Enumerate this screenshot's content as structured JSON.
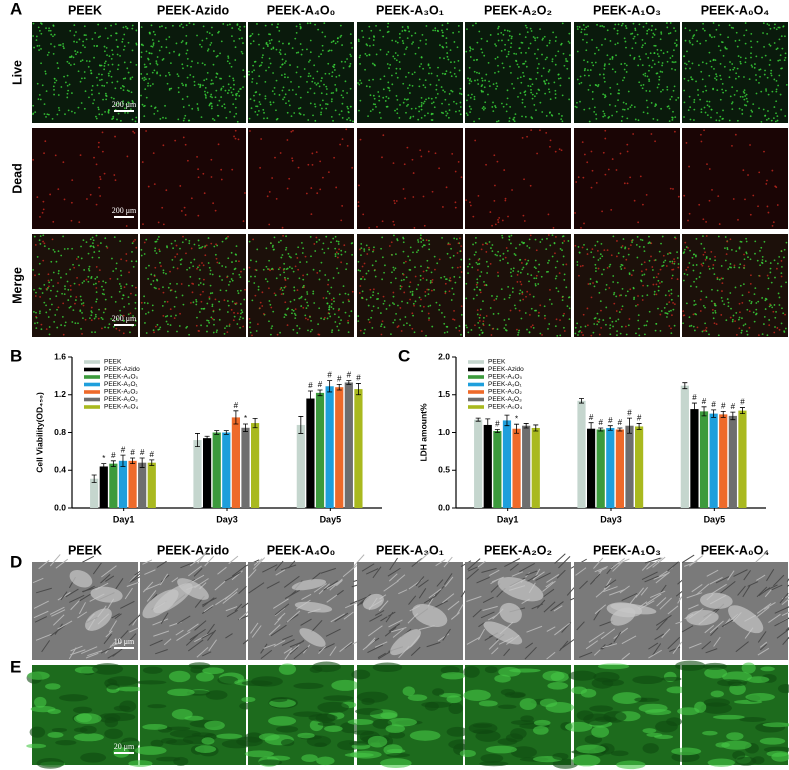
{
  "panel_letters": [
    "A",
    "B",
    "C",
    "D",
    "E"
  ],
  "column_labels": [
    "PEEK",
    "PEEK-Azido",
    "PEEK-A₄O₀",
    "PEEK-A₃O₁",
    "PEEK-A₂O₂",
    "PEEK-A₁O₃",
    "PEEK-A₀O₄"
  ],
  "row_labels": [
    "Live",
    "Dead",
    "Merge"
  ],
  "scale_bars": [
    "200 μm",
    "200 μm",
    "200 μm",
    "10 μm",
    "20 μm"
  ],
  "chart_data": [
    {
      "type": "bar",
      "y_label": "Cell Viability(OD₄₅₀)",
      "categories": [
        "Day1",
        "Day3",
        "Day5"
      ],
      "ylim": [
        0,
        1.6
      ],
      "yticks": [
        {
          "value": 0,
          "label": "0.0"
        },
        0.4,
        0.8,
        1.2,
        1.6
      ],
      "series": [
        {
          "name": "PEEK",
          "color": "#c5d6ce",
          "values": [
            0.31,
            0.72,
            0.88
          ],
          "errors": [
            0.04,
            0.07,
            0.09
          ],
          "markers": [
            null,
            null,
            null
          ]
        },
        {
          "name": "PEEK-Azido",
          "color": "#000000",
          "values": [
            0.44,
            0.74,
            1.16
          ],
          "errors": [
            0.03,
            0.02,
            0.08
          ],
          "markers": [
            "*",
            null,
            "#"
          ]
        },
        {
          "name": "PEEK-A₄O₀",
          "color": "#3c9a3c",
          "values": [
            0.47,
            0.8,
            1.22
          ],
          "errors": [
            0.03,
            0.02,
            0.03
          ],
          "markers": [
            "#",
            null,
            "#"
          ]
        },
        {
          "name": "PEEK-A₃O₁",
          "color": "#1e9fdc",
          "values": [
            0.5,
            0.8,
            1.29
          ],
          "errors": [
            0.06,
            0.02,
            0.06
          ],
          "markers": [
            "#",
            null,
            "#"
          ]
        },
        {
          "name": "PEEK-A₂O₂",
          "color": "#ee6a2a",
          "values": [
            0.5,
            0.96,
            1.28
          ],
          "errors": [
            0.03,
            0.07,
            0.03
          ],
          "markers": [
            "#",
            "#",
            "#"
          ]
        },
        {
          "name": "PEEK-A₁O₃",
          "color": "#6e6e6e",
          "values": [
            0.48,
            0.85,
            1.33
          ],
          "errors": [
            0.05,
            0.04,
            0.02
          ],
          "markers": [
            "#",
            "*",
            "#"
          ]
        },
        {
          "name": "PEEK-A₀O₄",
          "color": "#a9b91f",
          "values": [
            0.48,
            0.9,
            1.26
          ],
          "errors": [
            0.03,
            0.05,
            0.06
          ],
          "markers": [
            "#",
            null,
            "#"
          ]
        }
      ]
    },
    {
      "type": "bar",
      "y_label": "LDH amount%",
      "categories": [
        "Day1",
        "Day3",
        "Day5"
      ],
      "ylim": [
        0,
        2.0
      ],
      "yticks": [
        {
          "value": 0,
          "label": "0.0"
        },
        0.5,
        {
          "value": 1,
          "label": "1.0"
        },
        1.5,
        {
          "value": 2,
          "label": "2.0"
        }
      ],
      "series": [
        {
          "name": "PEEK",
          "color": "#c5d6ce",
          "values": [
            1.17,
            1.42,
            1.62
          ],
          "errors": [
            0.02,
            0.03,
            0.04
          ],
          "markers": [
            null,
            null,
            null
          ]
        },
        {
          "name": "PEEK-Azido",
          "color": "#000000",
          "values": [
            1.1,
            1.05,
            1.31
          ],
          "errors": [
            0.08,
            0.08,
            0.08
          ],
          "markers": [
            null,
            "#",
            "#"
          ]
        },
        {
          "name": "PEEK-A₄O₀",
          "color": "#3c9a3c",
          "values": [
            1.02,
            1.04,
            1.28
          ],
          "errors": [
            0.02,
            0.02,
            0.06
          ],
          "markers": [
            "#",
            "#",
            "#"
          ]
        },
        {
          "name": "PEEK-A₃O₁",
          "color": "#1e9fdc",
          "values": [
            1.16,
            1.06,
            1.25
          ],
          "errors": [
            0.07,
            0.03,
            0.05
          ],
          "markers": [
            null,
            "#",
            "#"
          ]
        },
        {
          "name": "PEEK-A₂O₂",
          "color": "#ee6a2a",
          "values": [
            1.05,
            1.04,
            1.24
          ],
          "errors": [
            0.06,
            0.02,
            0.04
          ],
          "markers": [
            "*",
            "#",
            "#"
          ]
        },
        {
          "name": "PEEK-A₁O₃",
          "color": "#6e6e6e",
          "values": [
            1.09,
            1.09,
            1.22
          ],
          "errors": [
            0.03,
            0.1,
            0.05
          ],
          "markers": [
            null,
            "#",
            "#"
          ]
        },
        {
          "name": "PEEK-A₀O₄",
          "color": "#a9b91f",
          "values": [
            1.06,
            1.08,
            1.29
          ],
          "errors": [
            0.04,
            0.04,
            0.04
          ],
          "markers": [
            null,
            "#",
            "#"
          ]
        }
      ]
    }
  ]
}
